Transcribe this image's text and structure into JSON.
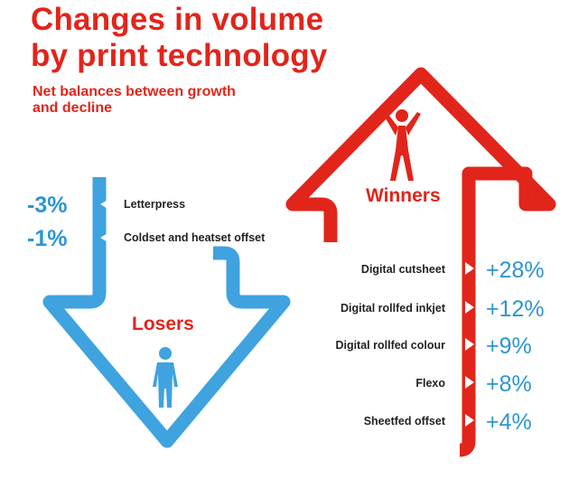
{
  "title_line1": "Changes in volume",
  "title_line2": "by print technology",
  "subtitle": "Net balances between growth and decline",
  "colors": {
    "winners": "#e1251b",
    "losers": "#3fa3df",
    "text": "#231f20"
  },
  "icons": {
    "winners": "person-arms-raised-icon",
    "losers": "person-standing-icon",
    "markers": "triangle-pointer-icon"
  },
  "chart_data": {
    "type": "table",
    "groups": [
      {
        "name": "Losers",
        "items": [
          {
            "label": "Letterpress",
            "value_text": "-3%",
            "value": -3
          },
          {
            "label": "Coldset and heatset offset",
            "value_text": "-1%",
            "value": -1
          }
        ]
      },
      {
        "name": "Winners",
        "items": [
          {
            "label": "Digital cutsheet",
            "value_text": "+28%",
            "value": 28
          },
          {
            "label": "Digital rollfed inkjet",
            "value_text": "+12%",
            "value": 12
          },
          {
            "label": "Digital rollfed colour",
            "value_text": "+9%",
            "value": 9
          },
          {
            "label": "Flexo",
            "value_text": "+8%",
            "value": 8
          },
          {
            "label": "Sheetfed offset",
            "value_text": "+4%",
            "value": 4
          }
        ]
      }
    ]
  }
}
